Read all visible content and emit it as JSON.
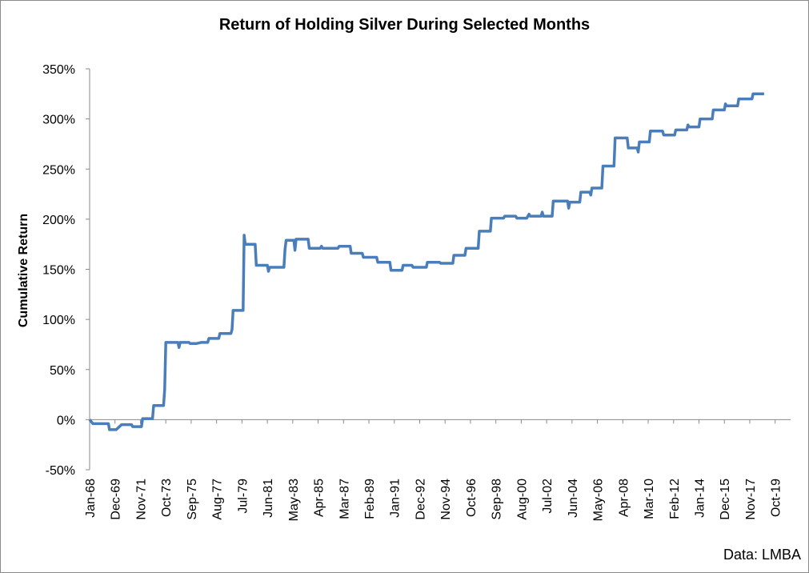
{
  "chart_data": {
    "type": "line",
    "title": "Return of Holding Silver During Selected Months",
    "ylabel": "Cumulative Return",
    "xlabel": "",
    "source": "Data: LMBA",
    "ylim": [
      -0.5,
      3.5
    ],
    "y_ticks": [
      "-50%",
      "0%",
      "50%",
      "100%",
      "150%",
      "200%",
      "250%",
      "300%",
      "350%"
    ],
    "x_tick_labels": [
      "Jan-68",
      "Dec-69",
      "Nov-71",
      "Oct-73",
      "Sep-75",
      "Aug-77",
      "Jul-79",
      "Jun-81",
      "May-83",
      "Apr-85",
      "Mar-87",
      "Feb-89",
      "Jan-91",
      "Dec-92",
      "Nov-94",
      "Oct-96",
      "Sep-98",
      "Aug-00",
      "Jul-02",
      "Jun-04",
      "May-06",
      "Apr-08",
      "Mar-10",
      "Feb-12",
      "Jan-14",
      "Dec-15",
      "Nov-17",
      "Oct-19"
    ],
    "x_start": "1968-01",
    "x_end": "2020-12",
    "series": [
      {
        "color": "#4a7ebb",
        "points": [
          [
            "1968-01",
            0.0
          ],
          [
            "1968-04",
            -0.04
          ],
          [
            "1969-06",
            -0.04
          ],
          [
            "1969-07",
            -0.1
          ],
          [
            "1970-01",
            -0.1
          ],
          [
            "1970-06",
            -0.05
          ],
          [
            "1971-03",
            -0.05
          ],
          [
            "1971-04",
            -0.07
          ],
          [
            "1971-12",
            -0.07
          ],
          [
            "1972-01",
            0.01
          ],
          [
            "1972-10",
            0.01
          ],
          [
            "1972-11",
            0.14
          ],
          [
            "1973-08",
            0.14
          ],
          [
            "1973-09",
            0.3
          ],
          [
            "1973-10",
            0.77
          ],
          [
            "1974-09",
            0.77
          ],
          [
            "1974-10",
            0.72
          ],
          [
            "1974-11",
            0.77
          ],
          [
            "1975-07",
            0.77
          ],
          [
            "1975-08",
            0.76
          ],
          [
            "1976-02",
            0.76
          ],
          [
            "1976-06",
            0.77
          ],
          [
            "1976-12",
            0.77
          ],
          [
            "1977-01",
            0.81
          ],
          [
            "1977-10",
            0.81
          ],
          [
            "1977-11",
            0.86
          ],
          [
            "1978-09",
            0.86
          ],
          [
            "1978-10",
            0.9
          ],
          [
            "1978-11",
            1.09
          ],
          [
            "1979-08",
            1.09
          ],
          [
            "1979-09",
            1.84
          ],
          [
            "1979-10",
            1.75
          ],
          [
            "1980-07",
            1.75
          ],
          [
            "1980-08",
            1.54
          ],
          [
            "1981-06",
            1.54
          ],
          [
            "1981-07",
            1.48
          ],
          [
            "1981-08",
            1.52
          ],
          [
            "1982-09",
            1.52
          ],
          [
            "1982-10",
            1.7
          ],
          [
            "1982-11",
            1.79
          ],
          [
            "1983-06",
            1.79
          ],
          [
            "1983-07",
            1.69
          ],
          [
            "1983-08",
            1.8
          ],
          [
            "1984-07",
            1.8
          ],
          [
            "1984-08",
            1.71
          ],
          [
            "1985-06",
            1.71
          ],
          [
            "1985-07",
            1.73
          ],
          [
            "1985-08",
            1.71
          ],
          [
            "1986-10",
            1.71
          ],
          [
            "1986-11",
            1.73
          ],
          [
            "1987-09",
            1.73
          ],
          [
            "1987-10",
            1.66
          ],
          [
            "1988-08",
            1.66
          ],
          [
            "1988-09",
            1.62
          ],
          [
            "1989-09",
            1.62
          ],
          [
            "1989-10",
            1.57
          ],
          [
            "1990-09",
            1.57
          ],
          [
            "1990-10",
            1.49
          ],
          [
            "1991-08",
            1.49
          ],
          [
            "1991-09",
            1.54
          ],
          [
            "1992-05",
            1.54
          ],
          [
            "1992-06",
            1.52
          ],
          [
            "1993-06",
            1.52
          ],
          [
            "1993-07",
            1.57
          ],
          [
            "1994-06",
            1.57
          ],
          [
            "1994-07",
            1.56
          ],
          [
            "1995-06",
            1.56
          ],
          [
            "1995-07",
            1.64
          ],
          [
            "1996-05",
            1.64
          ],
          [
            "1996-06",
            1.71
          ],
          [
            "1997-05",
            1.71
          ],
          [
            "1997-06",
            1.88
          ],
          [
            "1998-04",
            1.88
          ],
          [
            "1998-05",
            2.01
          ],
          [
            "1999-04",
            2.01
          ],
          [
            "1999-05",
            2.03
          ],
          [
            "2000-03",
            2.03
          ],
          [
            "2000-04",
            2.01
          ],
          [
            "2001-01",
            2.01
          ],
          [
            "2001-02",
            2.03
          ],
          [
            "2001-03",
            2.05
          ],
          [
            "2001-04",
            2.03
          ],
          [
            "2002-02",
            2.03
          ],
          [
            "2002-03",
            2.07
          ],
          [
            "2002-04",
            2.03
          ],
          [
            "2002-12",
            2.03
          ],
          [
            "2003-01",
            2.18
          ],
          [
            "2004-02",
            2.18
          ],
          [
            "2004-03",
            2.11
          ],
          [
            "2004-04",
            2.17
          ],
          [
            "2005-01",
            2.17
          ],
          [
            "2005-02",
            2.27
          ],
          [
            "2005-10",
            2.27
          ],
          [
            "2005-11",
            2.24
          ],
          [
            "2005-12",
            2.31
          ],
          [
            "2006-09",
            2.31
          ],
          [
            "2006-10",
            2.53
          ],
          [
            "2007-08",
            2.53
          ],
          [
            "2007-09",
            2.81
          ],
          [
            "2008-08",
            2.81
          ],
          [
            "2008-09",
            2.71
          ],
          [
            "2009-05",
            2.71
          ],
          [
            "2009-06",
            2.67
          ],
          [
            "2009-07",
            2.77
          ],
          [
            "2010-04",
            2.77
          ],
          [
            "2010-05",
            2.88
          ],
          [
            "2011-04",
            2.88
          ],
          [
            "2011-05",
            2.84
          ],
          [
            "2012-03",
            2.84
          ],
          [
            "2012-04",
            2.89
          ],
          [
            "2013-02",
            2.89
          ],
          [
            "2013-03",
            2.94
          ],
          [
            "2013-04",
            2.92
          ],
          [
            "2014-01",
            2.92
          ],
          [
            "2014-02",
            3.0
          ],
          [
            "2015-01",
            3.0
          ],
          [
            "2015-02",
            3.09
          ],
          [
            "2015-12",
            3.09
          ],
          [
            "2016-01",
            3.15
          ],
          [
            "2016-02",
            3.13
          ],
          [
            "2016-12",
            3.13
          ],
          [
            "2017-01",
            3.2
          ],
          [
            "2018-01",
            3.2
          ],
          [
            "2018-02",
            3.25
          ],
          [
            "2018-12",
            3.25
          ]
        ]
      }
    ],
    "grid": false,
    "legend": "none"
  }
}
